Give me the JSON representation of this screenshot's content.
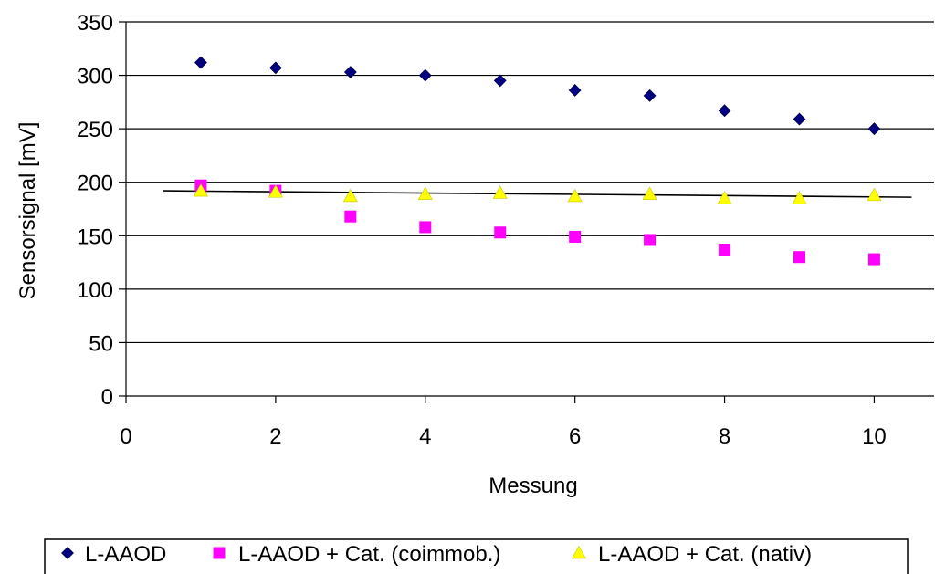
{
  "chart_data": {
    "type": "scatter",
    "xlabel": "Messung",
    "ylabel": "Sensorsignal [mV]",
    "xlim": [
      0,
      10.8
    ],
    "ylim": [
      0,
      350
    ],
    "x_ticks": [
      0,
      2,
      4,
      6,
      8,
      10
    ],
    "y_ticks": [
      0,
      50,
      100,
      150,
      200,
      250,
      300,
      350
    ],
    "grid": "horizontal",
    "legend_position": "bottom",
    "series": [
      {
        "name": "L-AAOD",
        "marker": "diamond",
        "color": "#000080",
        "x": [
          1,
          2,
          3,
          4,
          5,
          6,
          7,
          8,
          9,
          10
        ],
        "y": [
          312,
          307,
          303,
          300,
          295,
          286,
          281,
          267,
          259,
          250
        ]
      },
      {
        "name": "L-AAOD + Cat. (coimmob.)",
        "marker": "square",
        "color": "#FF00FF",
        "x": [
          1,
          2,
          3,
          4,
          5,
          6,
          7,
          8,
          9,
          10
        ],
        "y": [
          197,
          192,
          168,
          158,
          153,
          149,
          146,
          137,
          130,
          128
        ]
      },
      {
        "name": "L-AAOD + Cat. (nativ)",
        "marker": "triangle",
        "color": "#FFFF00",
        "x": [
          1,
          2,
          3,
          4,
          5,
          6,
          7,
          8,
          9,
          10
        ],
        "y": [
          192,
          191,
          187,
          189,
          190,
          187,
          189,
          185,
          185,
          188
        ]
      }
    ],
    "trendline": {
      "color": "#000000",
      "x": [
        0.5,
        10.5
      ],
      "y": [
        192,
        186
      ]
    }
  }
}
